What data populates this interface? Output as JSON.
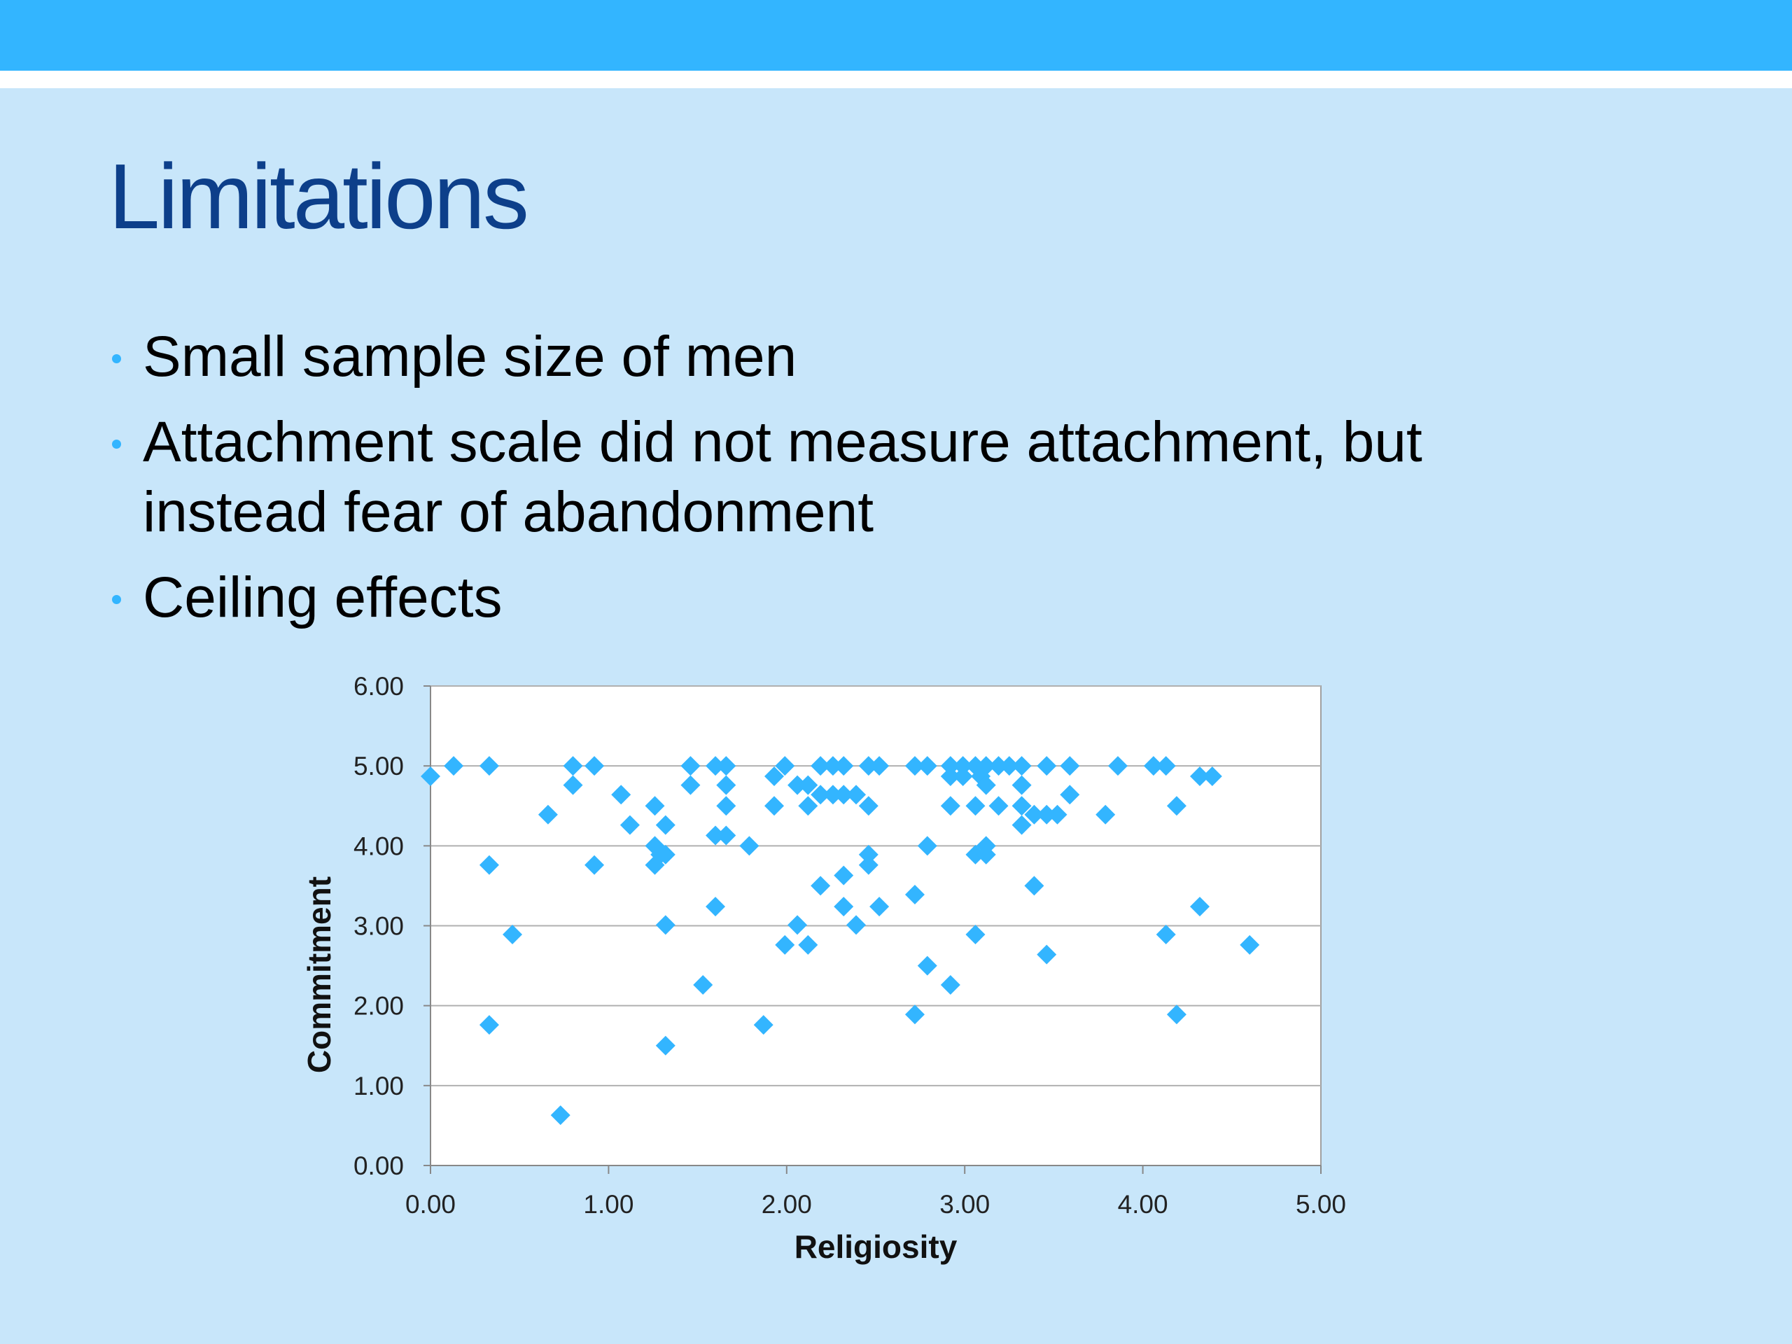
{
  "title": "Limitations",
  "bullets": [
    "Small sample size of men",
    "Attachment scale did not measure attachment, but instead fear of abandonment",
    "Ceiling effects"
  ],
  "chart_data": {
    "type": "scatter",
    "color": "#33b5ff",
    "marker": "diamond",
    "grid": true,
    "x_label": "Religiosity",
    "y_label": "Commitment",
    "xlim": [
      0,
      5
    ],
    "ylim": [
      0,
      6
    ],
    "xticks": [
      {
        "value": 0,
        "label": "0.00"
      },
      {
        "value": 1,
        "label": "1.00"
      },
      {
        "value": 2,
        "label": "2.00"
      },
      {
        "value": 3,
        "label": "3.00"
      },
      {
        "value": 4,
        "label": "4.00"
      },
      {
        "value": 5,
        "label": "5.00"
      }
    ],
    "yticks": [
      {
        "value": 0,
        "label": "0.00"
      },
      {
        "value": 1,
        "label": "1.00"
      },
      {
        "value": 2,
        "label": "2.00"
      },
      {
        "value": 3,
        "label": "3.00"
      },
      {
        "value": 4,
        "label": "4.00"
      },
      {
        "value": 5,
        "label": "5.00"
      },
      {
        "value": 6,
        "label": "6.00"
      }
    ],
    "x": [
      0.0,
      0.13,
      0.33,
      0.33,
      0.33,
      0.46,
      0.66,
      0.73,
      0.8,
      0.8,
      0.92,
      0.92,
      1.07,
      1.12,
      1.26,
      1.26,
      1.26,
      1.29,
      1.32,
      1.32,
      1.32,
      1.32,
      1.46,
      1.46,
      1.53,
      1.6,
      1.6,
      1.6,
      1.66,
      1.66,
      1.66,
      1.66,
      1.79,
      1.87,
      1.93,
      1.93,
      1.99,
      1.99,
      2.06,
      2.06,
      2.12,
      2.12,
      2.12,
      2.19,
      2.19,
      2.19,
      2.26,
      2.26,
      2.32,
      2.32,
      2.32,
      2.32,
      2.39,
      2.39,
      2.46,
      2.46,
      2.46,
      2.46,
      2.52,
      2.52,
      2.72,
      2.72,
      2.72,
      2.79,
      2.79,
      2.79,
      2.92,
      2.92,
      2.92,
      2.92,
      2.99,
      2.99,
      3.06,
      3.06,
      3.06,
      3.06,
      3.09,
      3.12,
      3.12,
      3.12,
      3.12,
      3.19,
      3.19,
      3.25,
      3.32,
      3.32,
      3.32,
      3.32,
      3.39,
      3.39,
      3.46,
      3.46,
      3.46,
      3.52,
      3.59,
      3.59,
      3.79,
      3.86,
      4.06,
      4.13,
      4.13,
      4.19,
      4.19,
      4.32,
      4.32,
      4.39,
      4.6
    ],
    "values": [
      4.87,
      5.0,
      5.0,
      3.76,
      1.76,
      2.89,
      4.39,
      0.63,
      5.0,
      4.76,
      5.0,
      3.76,
      4.64,
      4.26,
      4.5,
      4.0,
      3.76,
      3.89,
      4.26,
      3.89,
      3.01,
      1.5,
      5.0,
      4.76,
      2.26,
      5.0,
      4.13,
      3.24,
      5.0,
      4.76,
      4.5,
      4.13,
      4.0,
      1.76,
      4.87,
      4.5,
      5.0,
      2.76,
      4.76,
      3.01,
      4.76,
      4.5,
      2.76,
      5.0,
      4.64,
      3.5,
      5.0,
      4.64,
      5.0,
      4.64,
      3.63,
      3.24,
      4.64,
      3.01,
      5.0,
      4.5,
      3.89,
      3.76,
      5.0,
      3.24,
      5.0,
      3.39,
      1.89,
      5.0,
      4.0,
      2.5,
      5.0,
      4.87,
      4.5,
      2.26,
      5.0,
      4.87,
      5.0,
      4.5,
      3.89,
      2.89,
      4.87,
      5.0,
      4.76,
      4.0,
      3.89,
      5.0,
      4.5,
      5.0,
      5.0,
      4.76,
      4.5,
      4.26,
      4.39,
      3.5,
      5.0,
      4.39,
      2.64,
      4.39,
      5.0,
      4.64,
      4.39,
      5.0,
      5.0,
      5.0,
      2.89,
      4.5,
      1.89,
      4.87,
      3.24,
      4.87,
      2.76
    ]
  }
}
